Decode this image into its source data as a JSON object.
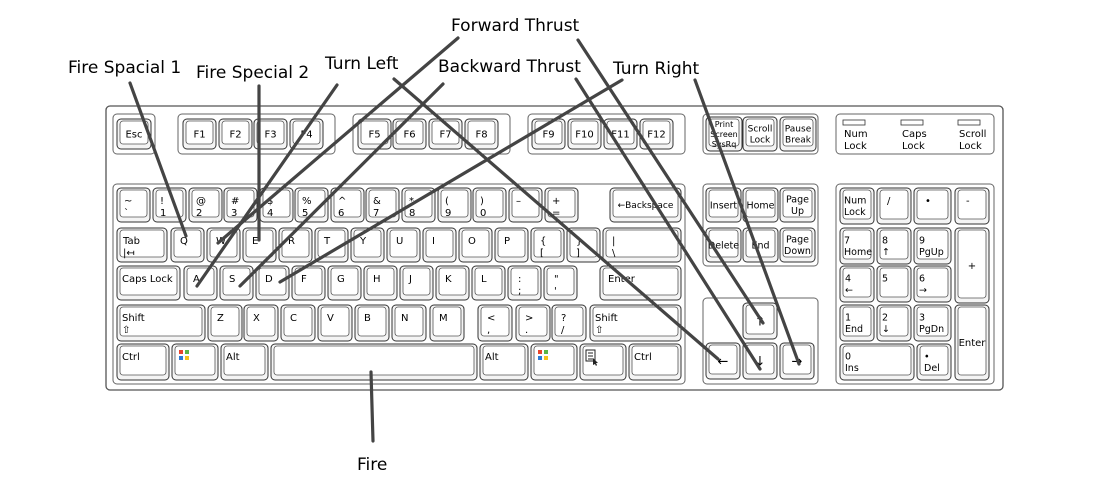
{
  "labels": {
    "fire_special_1": "Fire Spacial 1",
    "fire_special_2": "Fire Special 2",
    "turn_left": "Turn Left",
    "forward_thrust": "Forward Thrust",
    "backward_thrust": "Backward Thrust",
    "turn_right": "Turn Right",
    "fire": "Fire"
  },
  "keyboard": {
    "function_row": [
      "Esc",
      "F1",
      "F2",
      "F3",
      "F4",
      "F5",
      "F6",
      "F7",
      "F8",
      "F9",
      "F10",
      "F11",
      "F12"
    ],
    "system_keys": [
      [
        "Print",
        "Screen",
        "SysRq"
      ],
      [
        "Scroll",
        "Lock"
      ],
      [
        "Pause",
        "Break"
      ]
    ],
    "indicators": [
      [
        "Num",
        "Lock"
      ],
      [
        "Caps",
        "Lock"
      ],
      [
        "Scroll",
        "Lock"
      ]
    ],
    "number_row": [
      [
        "~",
        "`"
      ],
      [
        "!",
        "1"
      ],
      [
        "@",
        "2"
      ],
      [
        "#",
        "3"
      ],
      [
        "$",
        "4"
      ],
      [
        "%",
        "5"
      ],
      [
        "^",
        "6"
      ],
      [
        "&",
        "7"
      ],
      [
        "*",
        "8"
      ],
      [
        "(",
        "9"
      ],
      [
        ")",
        "0"
      ],
      [
        "–",
        ""
      ],
      [
        "+",
        "="
      ]
    ],
    "backspace": "←Backspace",
    "tab": [
      "Tab",
      "|↤"
    ],
    "qwerty_row": [
      "Q",
      "W",
      "E",
      "R",
      "T",
      "Y",
      "U",
      "I",
      "O",
      "P"
    ],
    "brackets": [
      [
        "{",
        "["
      ],
      [
        "}",
        "]"
      ],
      [
        "|",
        "\\"
      ]
    ],
    "caps_lock": "Caps Lock",
    "home_row": [
      "A",
      "S",
      "D",
      "F",
      "G",
      "H",
      "J",
      "K",
      "L"
    ],
    "home_row_punct": [
      [
        ":",
        ";"
      ],
      [
        "\"",
        "'"
      ]
    ],
    "enter": "Enter",
    "shift": [
      "Shift",
      "⇧"
    ],
    "bottom_letters": [
      "Z",
      "X",
      "C",
      "V",
      "B",
      "N",
      "M"
    ],
    "bottom_punct": [
      [
        "<",
        ","
      ],
      [
        ">",
        "."
      ],
      [
        "?",
        "/"
      ]
    ],
    "ctrl": "Ctrl",
    "alt": "Alt",
    "win_icon": "windows-logo",
    "menu_icon": "menu-icon",
    "nav_cluster": [
      [
        "Insert"
      ],
      [
        "Home"
      ],
      [
        "Page",
        "Up"
      ],
      [
        "Delete"
      ],
      [
        "End"
      ],
      [
        "Page",
        "Down"
      ]
    ],
    "arrows": [
      "↑",
      "←",
      "↓",
      "→"
    ],
    "numpad": [
      [
        "Num",
        "Lock"
      ],
      [
        "/"
      ],
      [
        "•"
      ],
      [
        "-"
      ],
      [
        "7",
        "Home"
      ],
      [
        "8",
        "↑"
      ],
      [
        "9",
        "PgUp"
      ],
      [
        "+"
      ],
      [
        "4",
        "←"
      ],
      [
        "5"
      ],
      [
        "6",
        "→"
      ],
      [
        "1",
        "End"
      ],
      [
        "2",
        "↓"
      ],
      [
        "3",
        "PgDn"
      ],
      [
        "Enter"
      ],
      [
        "0",
        "Ins"
      ],
      [
        "•",
        "Del"
      ]
    ]
  }
}
